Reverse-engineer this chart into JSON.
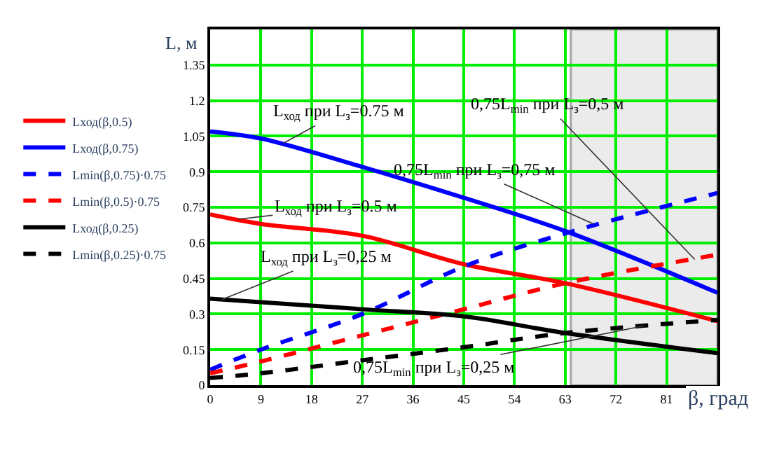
{
  "chart_data": {
    "type": "line",
    "xlabel": "β, град",
    "ylabel": "L, м",
    "x": [
      0,
      9,
      27,
      45,
      63,
      90
    ],
    "xlim": [
      0,
      90
    ],
    "xticks": [
      0,
      9,
      18,
      27,
      36,
      45,
      54,
      63,
      72,
      81
    ],
    "ylim": [
      0,
      1.5
    ],
    "yticks": [
      0,
      0.15,
      0.3,
      0.45,
      0.6,
      0.75,
      0.9,
      1.05,
      1.2,
      1.35
    ],
    "grid": true,
    "legend": "left",
    "marker": "none",
    "series": [
      {
        "name": "Lход(β,0.5)",
        "color": "#ff0000",
        "line_style": "solid",
        "values": [
          0.72,
          0.68,
          0.63,
          0.51,
          0.43,
          0.27
        ]
      },
      {
        "name": "Lход(β,0.75)",
        "color": "#0000ff",
        "line_style": "solid",
        "values": [
          1.07,
          1.04,
          0.92,
          0.79,
          0.65,
          0.39
        ]
      },
      {
        "name": "Lmin(β,0.75)·0.75",
        "color": "#0000ff",
        "line_style": "dashed",
        "values": [
          0.065,
          0.15,
          0.3,
          0.5,
          0.64,
          0.81
        ]
      },
      {
        "name": "Lmin(β,0.5)·0.75",
        "color": "#ff0000",
        "line_style": "dashed",
        "values": [
          0.05,
          0.1,
          0.21,
          0.32,
          0.43,
          0.55
        ]
      },
      {
        "name": "Lход(β,0.25)",
        "color": "#000000",
        "line_style": "solid",
        "values": [
          0.365,
          0.35,
          0.32,
          0.29,
          0.22,
          0.135
        ]
      },
      {
        "name": "Lmin(β,0.25)·0.75",
        "color": "#000000",
        "line_style": "dashed",
        "values": [
          0.03,
          0.05,
          0.105,
          0.16,
          0.22,
          0.275
        ]
      }
    ],
    "bands": [
      {
        "axis": "x",
        "from": 64,
        "to": 90,
        "label": null,
        "color": "#c8c8c8"
      }
    ],
    "annotations": [
      {
        "text": "L$_{ход}$ при L$_{з}$=0.75 м",
        "x": 13,
        "y": 1.02
      },
      {
        "text": "0,75L$_{min}$ при L$_{з}$=0,75 м",
        "x": 68,
        "y": 0.68
      },
      {
        "text": "0,75L$_{min}$ при L$_{з}$=0,5 м",
        "x": 86,
        "y": 0.53
      },
      {
        "text": "L$_{ход}$ при L$_{з}$=0.5 м",
        "x": 5,
        "y": 0.7
      },
      {
        "text": "L$_{ход}$ при L$_{з}$=0,25 м",
        "x": 2,
        "y": 0.36
      },
      {
        "text": "0,75L$_{min}$ при L$_{з}$=0,25 м",
        "x": 77,
        "y": 0.25
      }
    ]
  }
}
